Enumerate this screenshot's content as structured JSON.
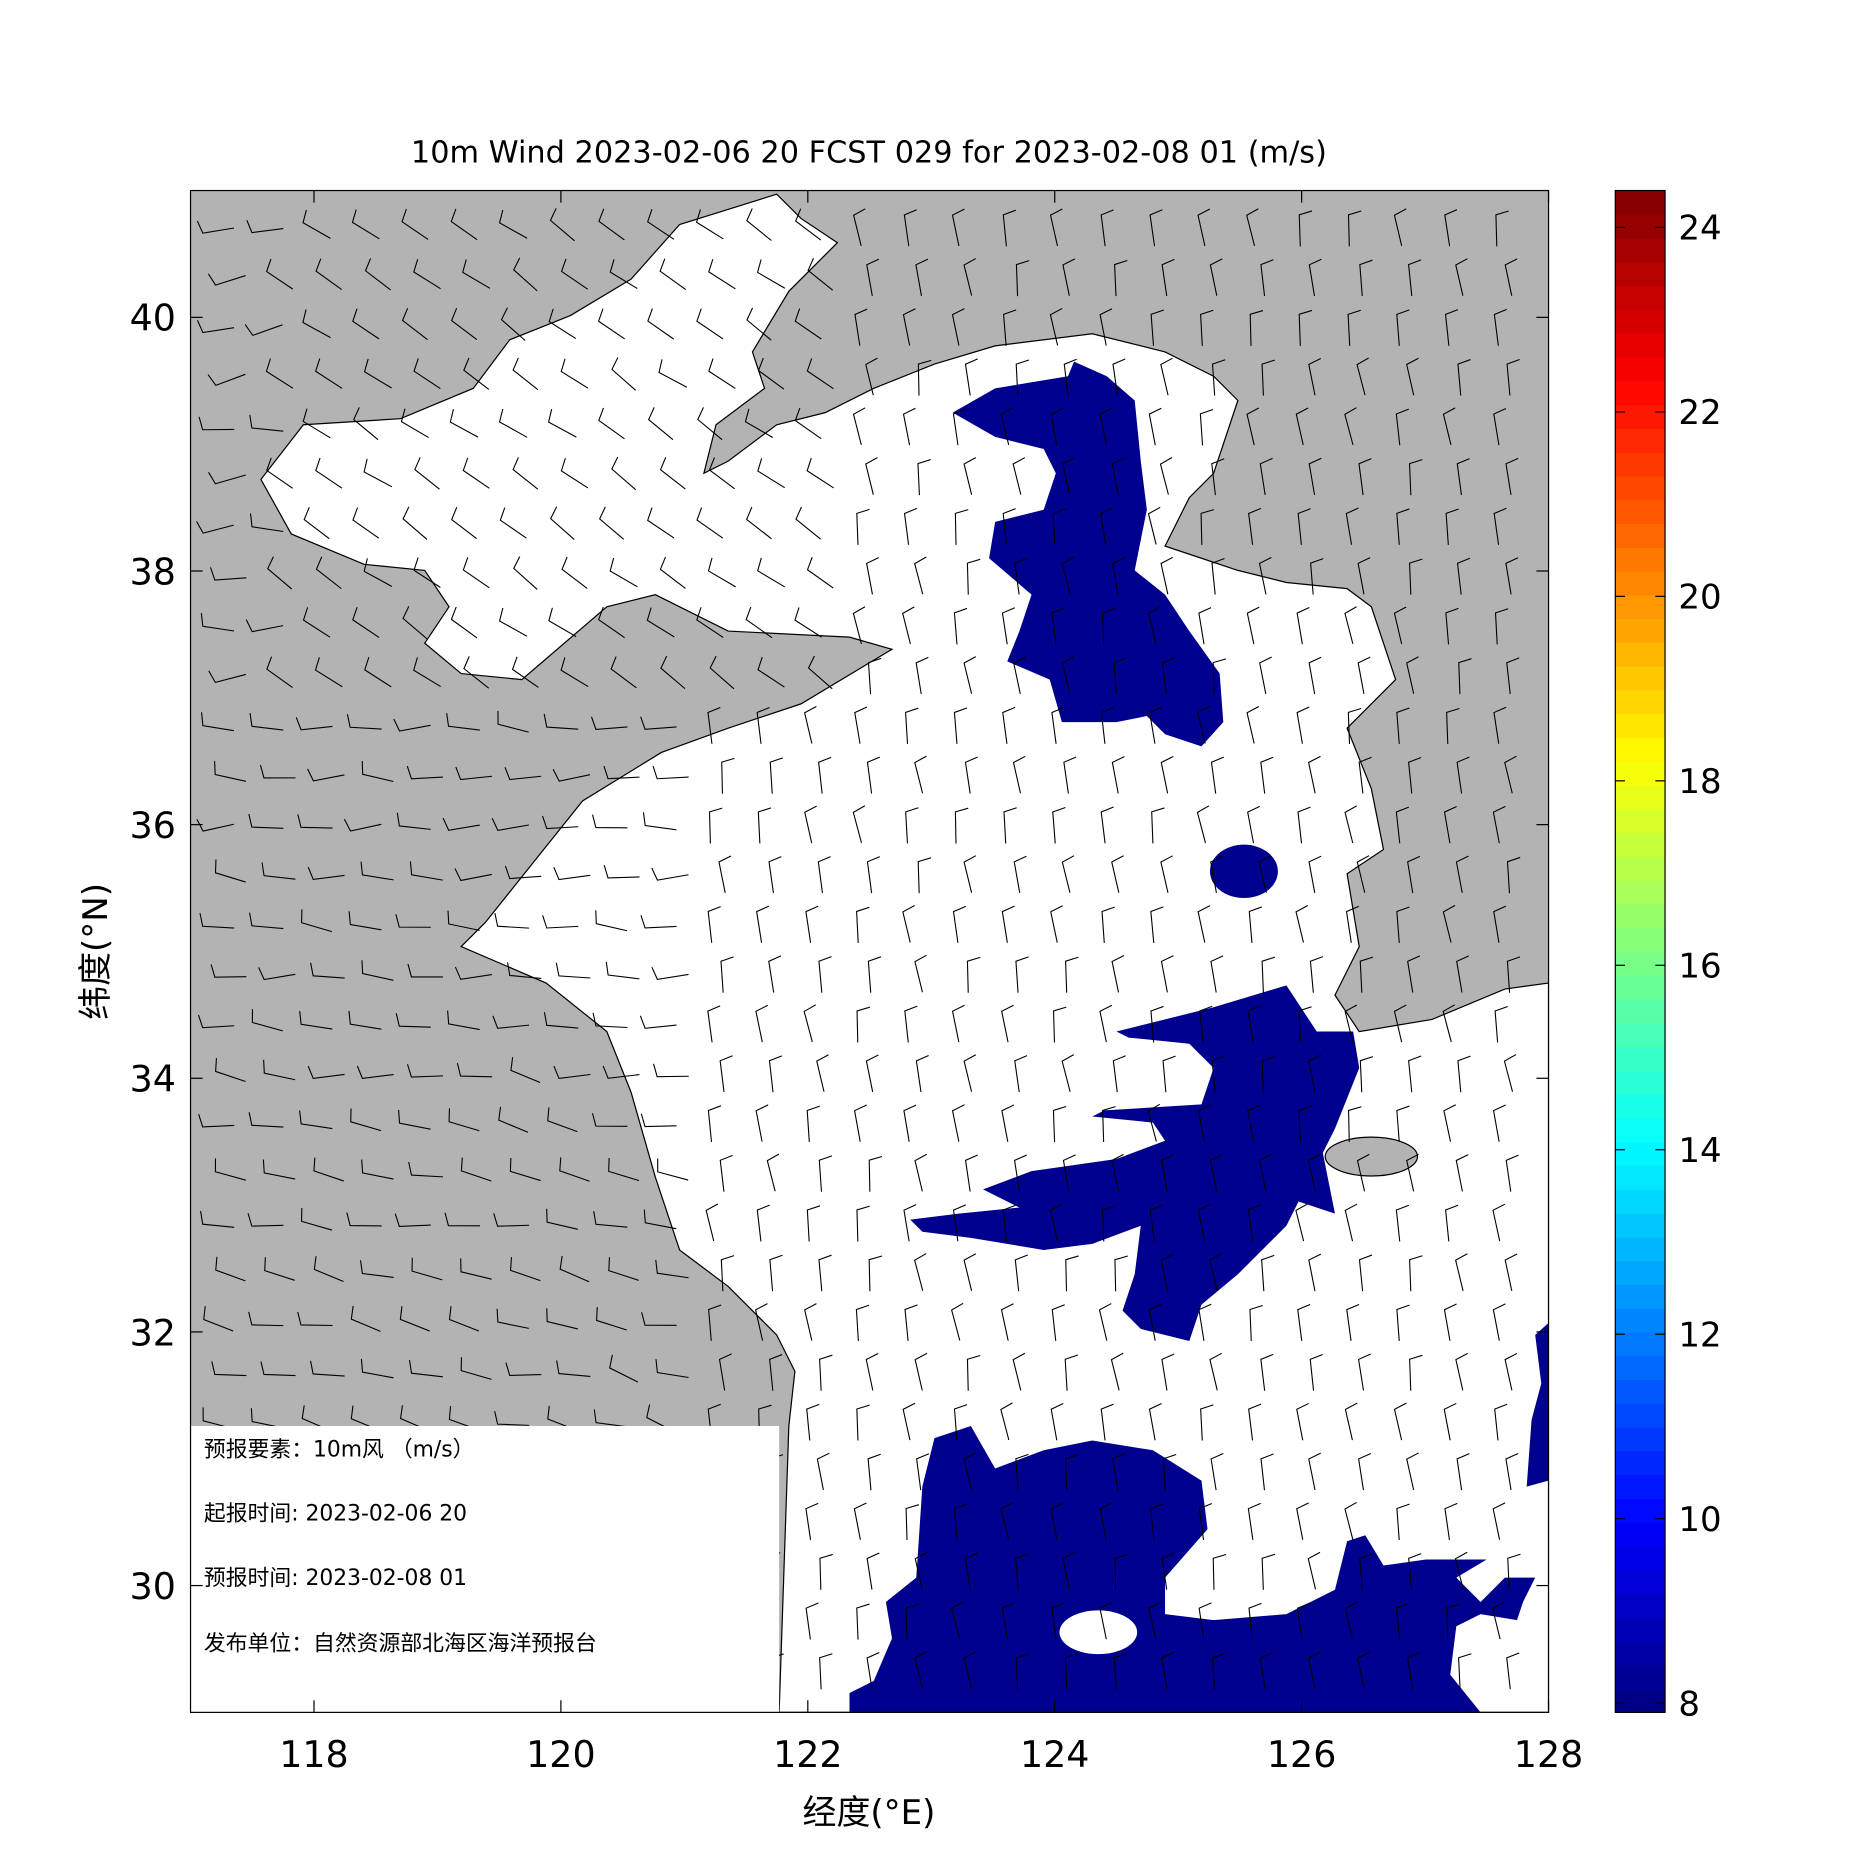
{
  "chart_data": {
    "type": "map",
    "title": "10m Wind 2023-02-06 20 FCST 029 for 2023-02-08 01 (m/s)",
    "x_label": "经度(°E)",
    "y_label": "纬度(°N)",
    "xlim": [
      117,
      128
    ],
    "ylim": [
      29,
      41
    ],
    "xticks": [
      118,
      120,
      122,
      124,
      126,
      128
    ],
    "yticks": [
      30,
      32,
      34,
      36,
      38,
      40
    ],
    "colorbar": {
      "colormap": "jet",
      "lim": [
        7.9,
        24.4
      ],
      "ticks": [
        8,
        10,
        12,
        14,
        16,
        18,
        20,
        22,
        24
      ]
    }
  },
  "info_box": {
    "lines": [
      "预报要素：10m风 （m/s）",
      "起报时间: 2023-02-06 20",
      "预报时间: 2023-02-08 01",
      "发布单位：自然资源部北海区海洋预报台"
    ]
  }
}
